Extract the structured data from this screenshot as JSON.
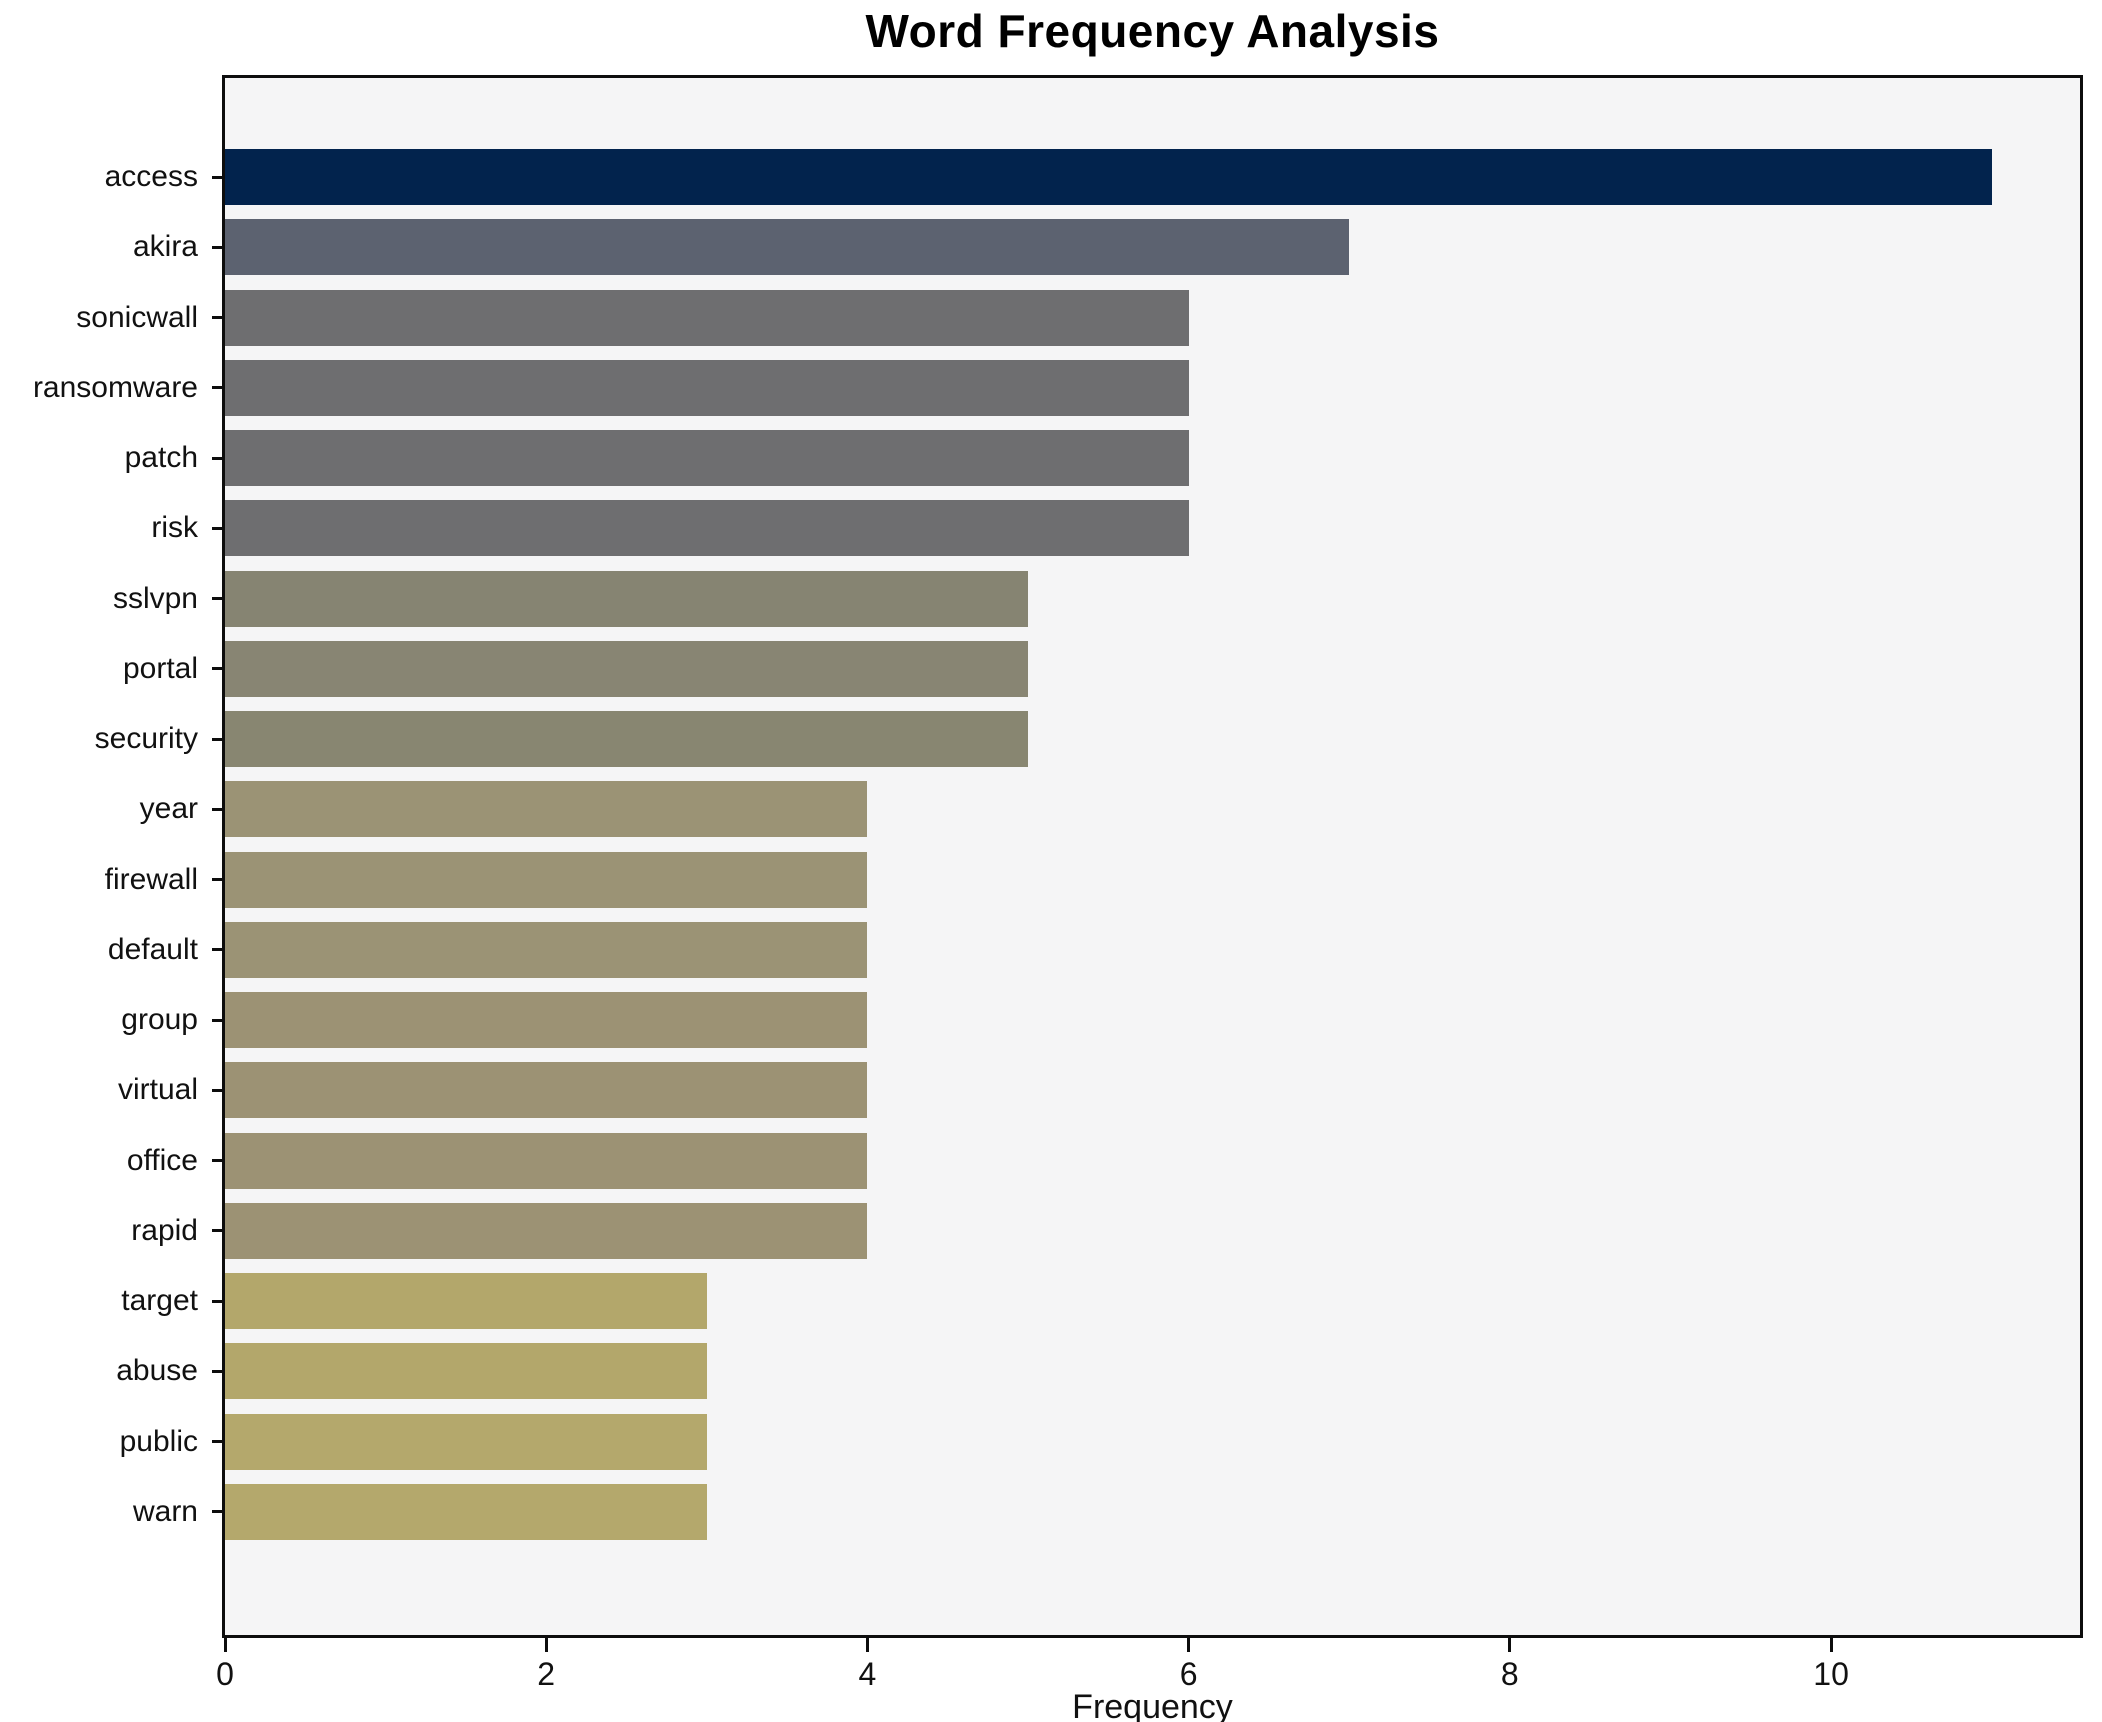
{
  "title": "Word Frequency Analysis",
  "xlabel": "Frequency",
  "chart_data": {
    "type": "bar",
    "orientation": "horizontal",
    "title": "Word Frequency Analysis",
    "xlabel": "Frequency",
    "ylabel": "",
    "categories": [
      "access",
      "akira",
      "sonicwall",
      "ransomware",
      "patch",
      "risk",
      "sslvpn",
      "portal",
      "security",
      "year",
      "firewall",
      "default",
      "group",
      "virtual",
      "office",
      "rapid",
      "target",
      "abuse",
      "public",
      "warn"
    ],
    "values": [
      11,
      7,
      6,
      6,
      6,
      6,
      5,
      5,
      5,
      4,
      4,
      4,
      4,
      4,
      4,
      4,
      3,
      3,
      3,
      3
    ],
    "bar_colors": [
      "#02234d",
      "#5c6270",
      "#6e6e70",
      "#6e6e70",
      "#6e6e70",
      "#6e6e70",
      "#868472",
      "#888573",
      "#888671",
      "#9b9375",
      "#9b9375",
      "#9b9375",
      "#9c9274",
      "#9c9274",
      "#9c9274",
      "#9c9274",
      "#b3a76b",
      "#b3a76b",
      "#b4a86c",
      "#b4a86c"
    ],
    "xlim": [
      0,
      11.55
    ],
    "xticks": [
      0,
      2,
      4,
      6,
      8,
      10
    ],
    "grid": false,
    "legend": null,
    "plot_background": "#f5f5f6",
    "figure_background": "#ffffff",
    "frame_color": "#0d0d0d"
  }
}
